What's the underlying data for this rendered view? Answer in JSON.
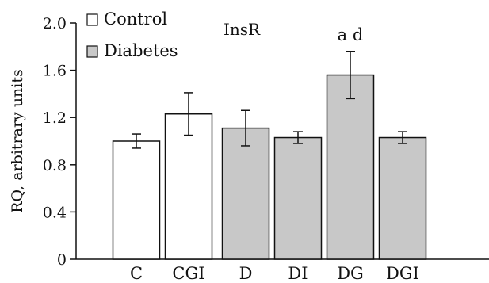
{
  "chart_data": {
    "type": "bar",
    "title": "InsR",
    "xlabel": "",
    "ylabel": "RQ, arbitrary units",
    "ylim": [
      0,
      2.0
    ],
    "yticks": [
      "0",
      "0.4",
      "0.8",
      "1.2",
      "1.6",
      "2.0"
    ],
    "grid": false,
    "legend_position": "top-left",
    "categories": [
      "C",
      "CGI",
      "D",
      "DI",
      "DG",
      "DGI"
    ],
    "values": [
      1.0,
      1.23,
      1.11,
      1.03,
      1.56,
      1.03
    ],
    "errors": [
      0.06,
      0.18,
      0.15,
      0.05,
      0.2,
      0.05
    ],
    "groups": [
      "Control",
      "Control",
      "Diabetes",
      "Diabetes",
      "Diabetes",
      "Diabetes"
    ],
    "legend": [
      {
        "name": "Control",
        "color": "#ffffff"
      },
      {
        "name": "Diabetes",
        "color": "#c8c8c8"
      }
    ],
    "annotations": [
      {
        "category": "DG",
        "text": "a d"
      }
    ]
  }
}
